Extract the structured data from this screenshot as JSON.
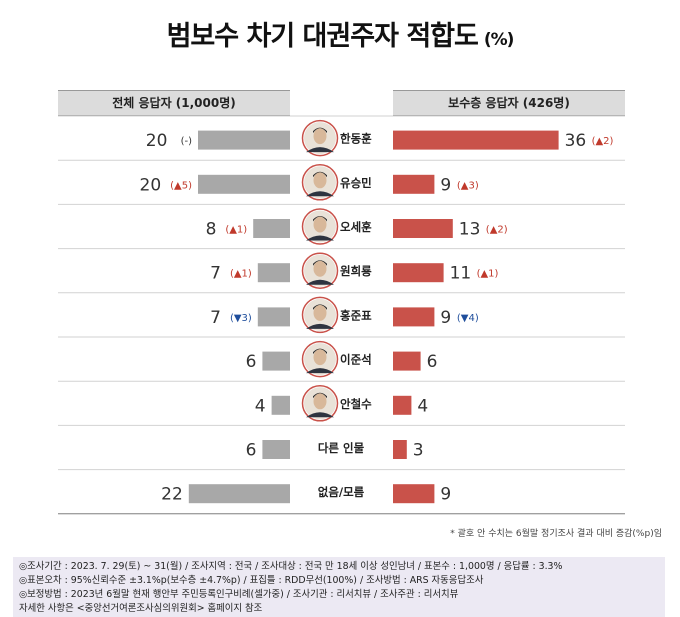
{
  "header": {
    "title": "범보수 차기 대권주자 적합도",
    "unit": "(%)"
  },
  "left_panel_label": "전체 응답자 (1,000명)",
  "right_panel_label": "보수층 응답자 (426명)",
  "chart_data": {
    "type": "bar",
    "categories": [
      "한동훈",
      "유승민",
      "오세훈",
      "원희룡",
      "홍준표",
      "이준석",
      "안철수",
      "다른 인물",
      "없음/모름"
    ],
    "series": [
      {
        "name": "전체 응답자 (1,000명)",
        "values": [
          20,
          20,
          8,
          7,
          7,
          6,
          4,
          6,
          22
        ],
        "changes": [
          "(-)",
          "(▲5)",
          "(▲1)",
          "(▲1)",
          "(▼3)",
          "",
          "",
          "",
          ""
        ],
        "color": "#a8a8a8"
      },
      {
        "name": "보수층 응답자 (426명)",
        "values": [
          36,
          9,
          13,
          11,
          9,
          6,
          4,
          3,
          9
        ],
        "changes": [
          "(▲2)",
          "(▲3)",
          "(▲2)",
          "(▲1)",
          "(▼4)",
          "",
          "",
          "",
          ""
        ],
        "color": "#c9524a"
      }
    ],
    "up_color": "#c0392b",
    "down_color": "#1f4e9c",
    "photo_rows": 7
  },
  "footnote": "* 괄호 안 수치는 6월말 정기조사 결과 대비 증감(%p)임",
  "info": {
    "line1": "◎조사기간 : 2023. 7. 29(토) ~ 31(월) / 조사지역 : 전국 / 조사대상 : 전국 만 18세 이상 성인남녀 / 표본수 : 1,000명 / 응답률 : 3.3%",
    "line2": "◎표본오차 : 95%신뢰수준 ±3.1%p(보수층 ±4.7%p) / 표집틀 : RDD무선(100%) / 조사방법 : ARS 자동응답조사",
    "line3": "◎보정방법 : 2023년 6월말 현재 행안부 주민등록인구비례(셀가중) / 조사기관 : 리서치뷰 / 조사주관 : 리서치뷰",
    "line4": "자세한 사항은 <중앙선거여론조사심의위원회> 홈페이지 참조"
  }
}
